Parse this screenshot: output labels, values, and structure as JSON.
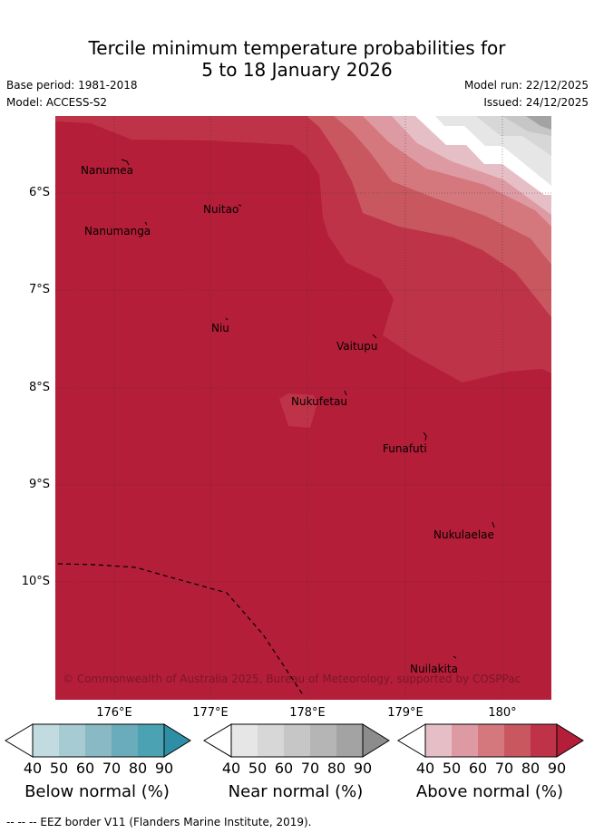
{
  "title": {
    "line1": "Tercile minimum temperature probabilities for",
    "line2": "5 to 18 January 2026"
  },
  "meta": {
    "base_period": "Base period: 1981-2018",
    "model": "Model: ACCESS-S2",
    "model_run": "Model run: 22/12/2025",
    "issued": "Issued: 24/12/2025"
  },
  "map": {
    "lat_labels": [
      "6°S",
      "7°S",
      "8°S",
      "9°S",
      "10°S"
    ],
    "lon_labels": [
      "176°E",
      "177°E",
      "178°E",
      "179°E",
      "180°"
    ],
    "places": [
      "Nanumea",
      "Nuitao",
      "Nanumanga",
      "Niu",
      "Vaitupu",
      "Nukufetau",
      "Funafuti",
      "Nukulaelae",
      "Nuilakita"
    ],
    "credit": "© Commonwealth of Australia 2025, Bureau of Meteorology, supported by COSPPac",
    "colors": {
      "above_90": "#b41e38",
      "above_80": "#be3347",
      "above_70": "#c85760",
      "above_60": "#d4787e",
      "above_50": "#de9aa2",
      "above_40": "#e6bfc6",
      "near_40": "#e6e6e6",
      "near_50": "#d7d7d7",
      "near_60": "#c6c6c6",
      "near_70": "#b5b5b5",
      "near_80": "#a3a3a3",
      "near_90": "#8c8c8c",
      "below_40": "#c2dbe0",
      "below_50": "#a6cbd2",
      "below_60": "#88b9c4",
      "below_70": "#6aacbb",
      "below_80": "#4ba2b2",
      "below_90": "#2e8ea5"
    }
  },
  "colorbars": {
    "ticks": [
      "40",
      "50",
      "60",
      "70",
      "80",
      "90"
    ],
    "below_label": "Below normal (%)",
    "near_label": "Near normal (%)",
    "above_label": "Above normal (%)"
  },
  "footer": "--  --  -- EEZ border V11 (Flanders Marine Institute, 2019)."
}
